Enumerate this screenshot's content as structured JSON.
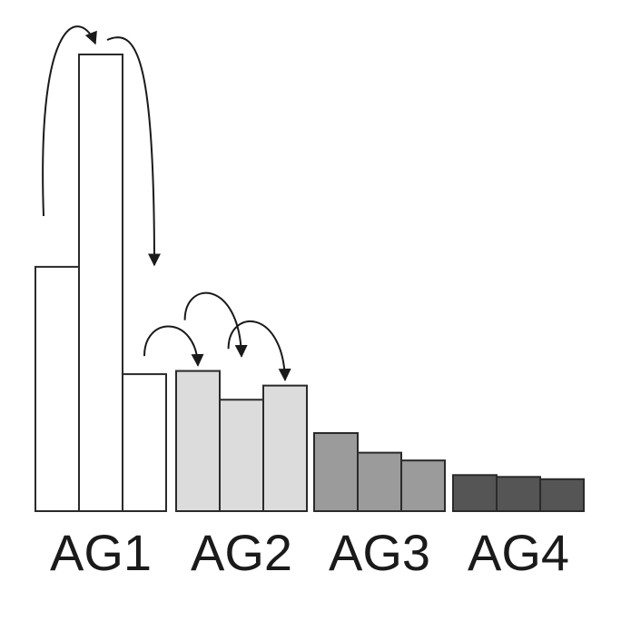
{
  "chart_data": {
    "type": "bar",
    "ylim": [
      0,
      100
    ],
    "grid": false,
    "legend": "none",
    "groups": [
      {
        "label": "AG1",
        "color": "#ffffff",
        "values": [
          53.5,
          100,
          30
        ]
      },
      {
        "label": "AG2",
        "color": "#dcdcdc",
        "values": [
          30.7,
          24.4,
          27.5
        ]
      },
      {
        "label": "AG3",
        "color": "#9b9b9b",
        "values": [
          17.1,
          12.8,
          11.1
        ]
      },
      {
        "label": "AG4",
        "color": "#555555",
        "values": [
          7.9,
          7.5,
          7.0
        ]
      }
    ],
    "transitions": [
      {
        "group": 0,
        "from": 0,
        "to": 1
      },
      {
        "group": 0,
        "from": 1,
        "to": 2
      },
      {
        "group": 1,
        "from": -1,
        "to": 0
      },
      {
        "group": 1,
        "from": 0,
        "to": 1
      },
      {
        "group": 1,
        "from": 1,
        "to": 2
      }
    ]
  }
}
